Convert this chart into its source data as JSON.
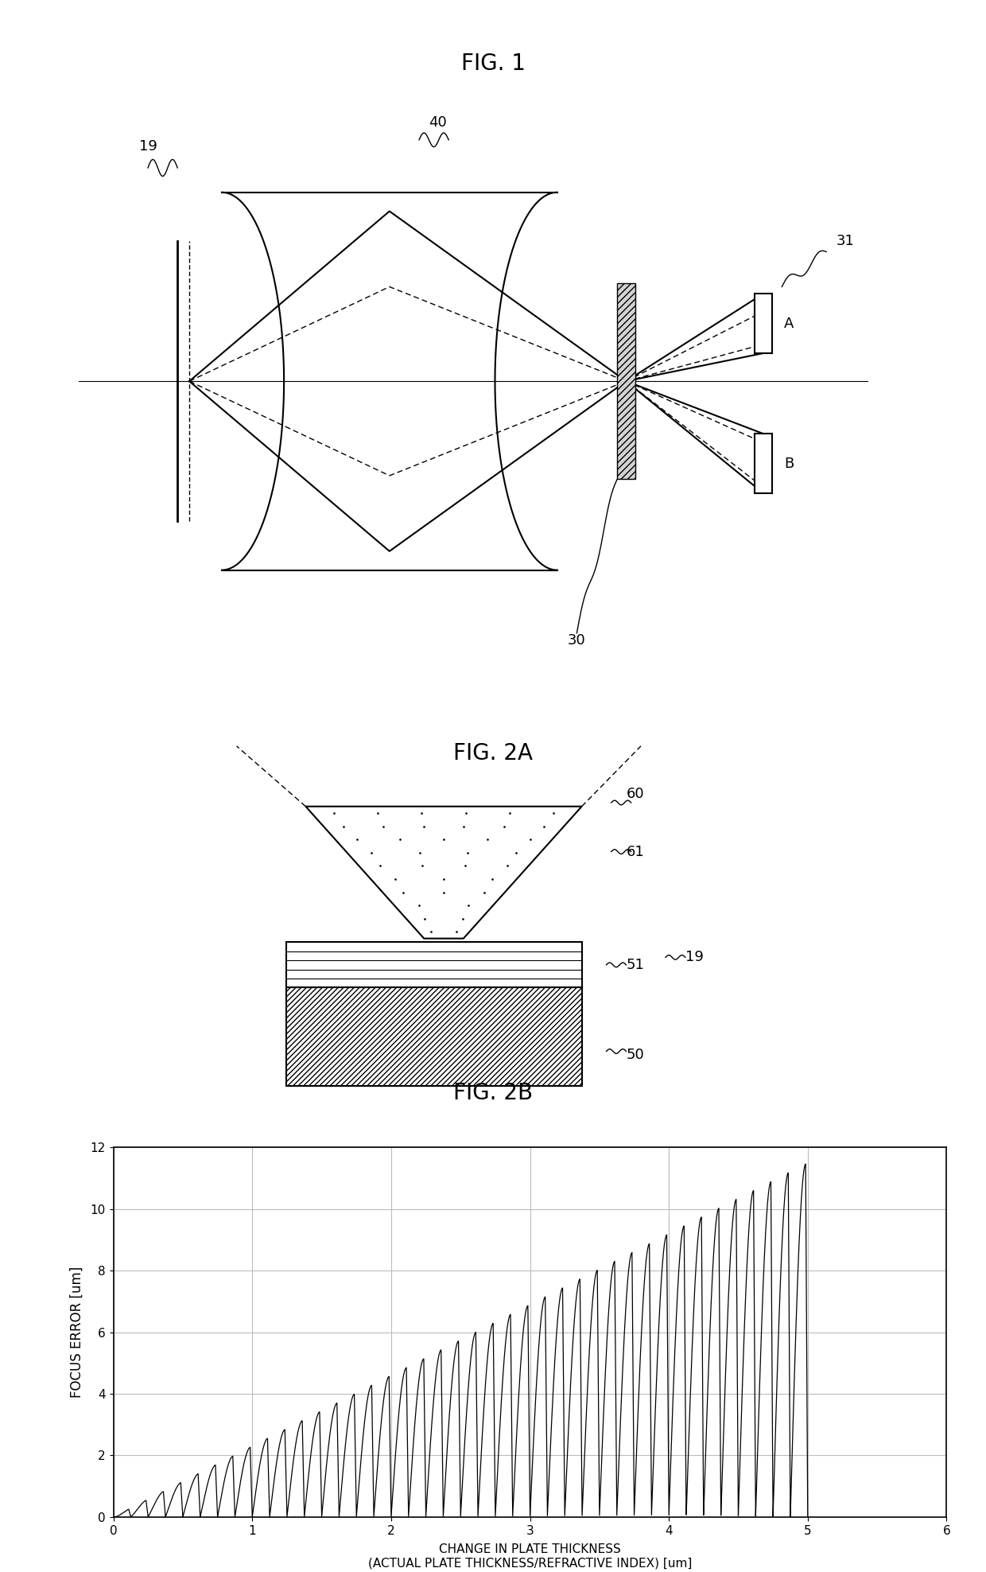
{
  "fig1_title": "FIG. 1",
  "fig2a_title": "FIG. 2A",
  "fig2b_title": "FIG. 2B",
  "fig2b_xlabel_line1": "CHANGE IN PLATE THICKNESS",
  "fig2b_xlabel_line2": "(ACTUAL PLATE THICKNESS/REFRACTIVE INDEX) [um]",
  "fig2b_ylabel": "FOCUS ERROR [um]",
  "fig2b_xlim": [
    0,
    6
  ],
  "fig2b_ylim": [
    0,
    12
  ],
  "fig2b_xticks": [
    0,
    1,
    2,
    3,
    4,
    5,
    6
  ],
  "fig2b_yticks": [
    0,
    2,
    4,
    6,
    8,
    10,
    12
  ],
  "background_color": "#ffffff",
  "line_color": "#000000",
  "n_teeth": 40,
  "x_max": 5.0,
  "envelope_slope": 2.3
}
